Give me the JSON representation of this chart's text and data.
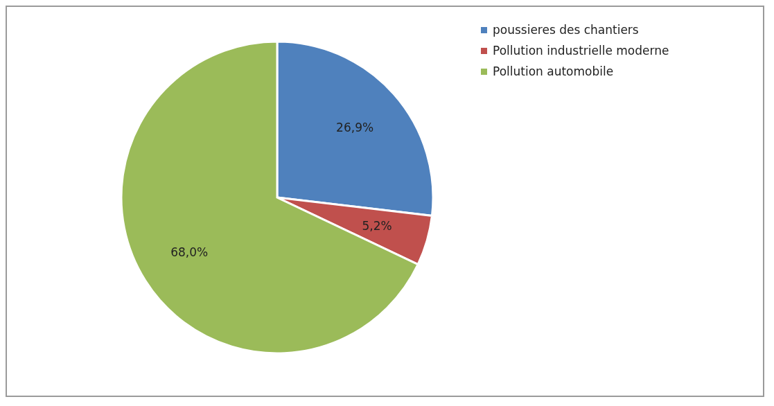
{
  "chart_data": {
    "type": "pie",
    "categories": [
      "poussieres des chantiers",
      "Pollution  industrielle moderne",
      "Pollution automobile"
    ],
    "values": [
      26.9,
      5.2,
      68.0
    ],
    "value_labels": [
      "26,9%",
      "5,2%",
      "68,0%"
    ],
    "colors": [
      "#4f81bd",
      "#c0504d",
      "#9bbb59"
    ],
    "legend": "right"
  }
}
